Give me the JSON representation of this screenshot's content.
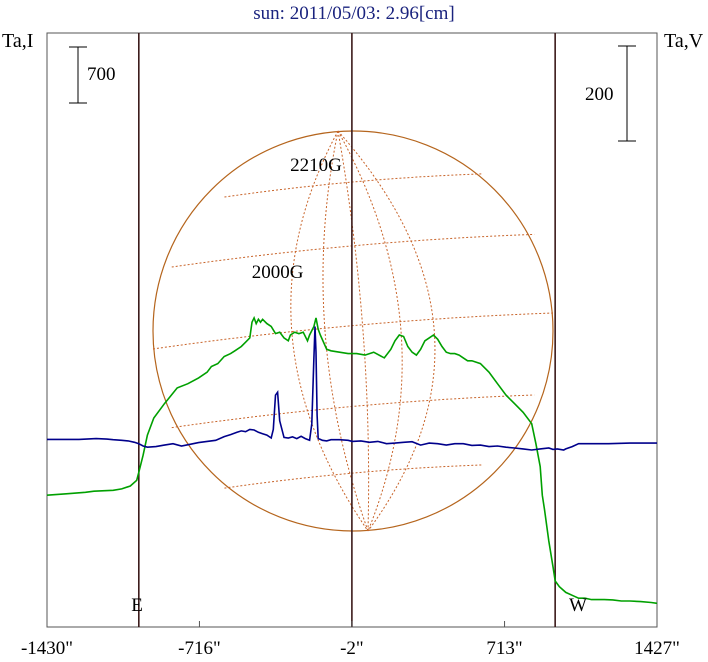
{
  "chart_data": {
    "type": "line",
    "title": "sun: 2011/05/03: 2.96[cm]",
    "y_left_label": "Ta,I",
    "y_right_label": "Ta,V",
    "x_ticks": [
      "-1430\"",
      "-716\"",
      "-2\"",
      "713\"",
      "1427\""
    ],
    "x_tick_values": [
      -1430,
      -716,
      -2,
      713,
      1427
    ],
    "xlim": [
      -1430,
      1427
    ],
    "limb_lines": [
      -1000,
      -2,
      950
    ],
    "limb_labels": [
      "E",
      "W"
    ],
    "scale_bar_left_label": "700",
    "scale_bar_right_label": "200",
    "annotations": [
      {
        "text": "2210G",
        "x": -170
      },
      {
        "text": "2000G",
        "x": -350
      }
    ],
    "series": [
      {
        "color": "#00a000",
        "x": [
          -1430,
          -1340,
          -1250,
          -1210,
          -1120,
          -1080,
          -1040,
          -1010,
          -1000,
          -980,
          -960,
          -930,
          -880,
          -820,
          -770,
          -720,
          -680,
          -660,
          -630,
          -600,
          -570,
          -550,
          -520,
          -500,
          -480,
          -470,
          -460,
          -450,
          -440,
          -430,
          -420,
          -400,
          -380,
          -360,
          -340,
          -320,
          -300,
          -290,
          -270,
          -250,
          -230,
          -210,
          -200,
          -180,
          -170,
          -160,
          -150,
          -120,
          -100,
          -60,
          -20,
          20,
          60,
          100,
          150,
          180,
          200,
          220,
          240,
          260,
          280,
          300,
          320,
          340,
          360,
          380,
          400,
          420,
          440,
          460,
          480,
          500,
          520,
          540,
          560,
          600,
          640,
          680,
          720,
          760,
          800,
          840,
          860,
          880,
          890,
          900,
          920,
          940,
          950,
          970,
          1000,
          1030,
          1060,
          1090,
          1120,
          1150,
          1180,
          1220,
          1260,
          1300,
          1350,
          1400,
          1427
        ],
        "y": [
          -2000,
          -1950,
          -1900,
          -1860,
          -1830,
          -1780,
          -1680,
          -1480,
          -1200,
          -600,
          100,
          700,
          1200,
          1750,
          1900,
          2100,
          2300,
          2500,
          2600,
          2850,
          2950,
          3050,
          3200,
          3350,
          3500,
          4050,
          4200,
          4000,
          4150,
          4050,
          4150,
          4000,
          3900,
          3650,
          3700,
          3500,
          3400,
          3600,
          3700,
          3650,
          3700,
          3400,
          3600,
          3900,
          4200,
          3800,
          3600,
          3100,
          3050,
          3000,
          2950,
          2950,
          2900,
          3000,
          2800,
          3100,
          3400,
          3600,
          3550,
          3200,
          3000,
          2900,
          3100,
          3400,
          3500,
          3600,
          3450,
          3200,
          3000,
          2950,
          2950,
          2900,
          2800,
          2700,
          2700,
          2600,
          2300,
          1900,
          1500,
          1200,
          900,
          500,
          -200,
          -1000,
          -2000,
          -2500,
          -3600,
          -4500,
          -5000,
          -5200,
          -5400,
          -5500,
          -5600,
          -5600,
          -5650,
          -5650,
          -5650,
          -5660,
          -5700,
          -5700,
          -5720,
          -5750,
          -5780
        ]
      },
      {
        "color": "#00008b",
        "x": [
          -1430,
          -1280,
          -1200,
          -1150,
          -1120,
          -1080,
          -1050,
          -1020,
          -1000,
          -980,
          -960,
          -920,
          -880,
          -840,
          -800,
          -760,
          -720,
          -680,
          -640,
          -600,
          -570,
          -540,
          -520,
          -500,
          -480,
          -460,
          -440,
          -420,
          -400,
          -380,
          -370,
          -360,
          -350,
          -340,
          -320,
          -300,
          -280,
          -260,
          -240,
          -220,
          -200,
          -190,
          -180,
          -175,
          -170,
          -165,
          -160,
          -150,
          -140,
          -120,
          -100,
          -60,
          -20,
          0,
          40,
          80,
          120,
          160,
          200,
          240,
          280,
          320,
          360,
          400,
          440,
          480,
          520,
          560,
          600,
          640,
          680,
          720,
          760,
          800,
          840,
          880,
          920,
          940,
          960,
          990,
          1000,
          1030,
          1060,
          1120,
          1200,
          1300,
          1427
        ],
        "y": [
          -50,
          -50,
          -20,
          -40,
          -60,
          -80,
          -100,
          -150,
          -200,
          -280,
          -320,
          -300,
          -250,
          -200,
          -280,
          -220,
          -160,
          -120,
          -80,
          50,
          120,
          200,
          250,
          220,
          300,
          280,
          200,
          150,
          100,
          0,
          300,
          1500,
          1600,
          600,
          20,
          0,
          40,
          -20,
          60,
          -20,
          -80,
          500,
          2800,
          3900,
          3000,
          800,
          -20,
          -50,
          -80,
          -100,
          -60,
          -60,
          -80,
          -120,
          -100,
          -150,
          -120,
          -200,
          -180,
          -150,
          -130,
          -250,
          -180,
          -200,
          -250,
          -200,
          -200,
          -260,
          -250,
          -300,
          -280,
          -320,
          -350,
          -380,
          -420,
          -380,
          -350,
          -400,
          -380,
          -420,
          -380,
          -300,
          -200,
          -200,
          -200,
          -180,
          -180
        ]
      }
    ]
  }
}
